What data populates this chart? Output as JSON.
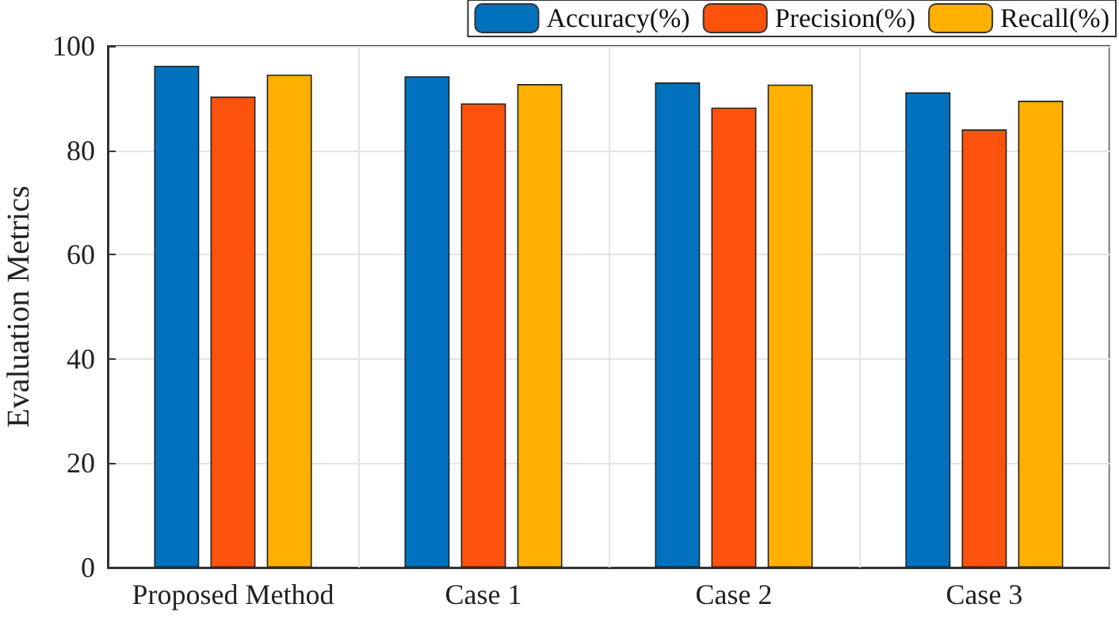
{
  "chart_data": {
    "type": "bar",
    "ylabel": "Evaluation Metrics",
    "categories": [
      "Proposed Method",
      "Case 1",
      "Case 2",
      "Case 3"
    ],
    "series": [
      {
        "name": "Accuracy(%)",
        "color": "#0072bd",
        "values": [
          96.2,
          94.2,
          93.0,
          91.1
        ]
      },
      {
        "name": "Precision(%)",
        "color": "#fc520c",
        "values": [
          90.3,
          89.0,
          88.2,
          84.0
        ]
      },
      {
        "name": "Recall(%)",
        "color": "#ffb000",
        "values": [
          94.5,
          92.7,
          92.6,
          89.5
        ]
      }
    ],
    "ylim": [
      0,
      100
    ],
    "yticks": [
      0,
      20,
      40,
      60,
      80,
      100
    ],
    "grid": true,
    "legend": "top right"
  }
}
